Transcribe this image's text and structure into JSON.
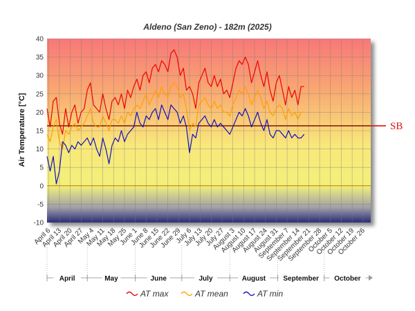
{
  "chart_data": {
    "type": "line",
    "title": "Aldeno (San Zeno) - 182m (2025)",
    "ylabel": "Air Temperature [°C]",
    "ylim": [
      -10,
      40
    ],
    "yticks": [
      "-10",
      "-5",
      "0",
      "5",
      "10",
      "15",
      "20",
      "25",
      "30",
      "35",
      "40"
    ],
    "x_range": [
      "2025-04-05",
      "2025-10-31"
    ],
    "xticks": [
      {
        "label": "April 6",
        "date": "2025-04-06"
      },
      {
        "label": "April 13",
        "date": "2025-04-13"
      },
      {
        "label": "April 20",
        "date": "2025-04-20"
      },
      {
        "label": "April 27",
        "date": "2025-04-27"
      },
      {
        "label": "May 4",
        "date": "2025-05-04"
      },
      {
        "label": "May 11",
        "date": "2025-05-11"
      },
      {
        "label": "May 18",
        "date": "2025-05-18"
      },
      {
        "label": "May 25",
        "date": "2025-05-25"
      },
      {
        "label": "June 1",
        "date": "2025-06-01"
      },
      {
        "label": "June 8",
        "date": "2025-06-08"
      },
      {
        "label": "June 15",
        "date": "2025-06-15"
      },
      {
        "label": "June 22",
        "date": "2025-06-22"
      },
      {
        "label": "June 29",
        "date": "2025-06-29"
      },
      {
        "label": "July 6",
        "date": "2025-07-06"
      },
      {
        "label": "July 13",
        "date": "2025-07-13"
      },
      {
        "label": "July 20",
        "date": "2025-07-20"
      },
      {
        "label": "July 27",
        "date": "2025-07-27"
      },
      {
        "label": "August 3",
        "date": "2025-08-03"
      },
      {
        "label": "August 10",
        "date": "2025-08-10"
      },
      {
        "label": "August 17",
        "date": "2025-08-17"
      },
      {
        "label": "August 24",
        "date": "2025-08-24"
      },
      {
        "label": "August 31",
        "date": "2025-08-31"
      },
      {
        "label": "September 7",
        "date": "2025-09-07"
      },
      {
        "label": "September 14",
        "date": "2025-09-14"
      },
      {
        "label": "September 21",
        "date": "2025-09-21"
      },
      {
        "label": "September 28",
        "date": "2025-09-28"
      },
      {
        "label": "October 5",
        "date": "2025-10-05"
      },
      {
        "label": "October 12",
        "date": "2025-10-12"
      },
      {
        "label": "October 19",
        "date": "2025-10-19"
      },
      {
        "label": "October 26",
        "date": "2025-10-26"
      }
    ],
    "months": [
      {
        "label": "April",
        "start": "2025-04-01",
        "end": "2025-05-01"
      },
      {
        "label": "May",
        "start": "2025-05-01",
        "end": "2025-06-01"
      },
      {
        "label": "June",
        "start": "2025-06-01",
        "end": "2025-07-01"
      },
      {
        "label": "July",
        "start": "2025-07-01",
        "end": "2025-08-01"
      },
      {
        "label": "August",
        "start": "2025-08-01",
        "end": "2025-09-01"
      },
      {
        "label": "September",
        "start": "2025-09-01",
        "end": "2025-10-01"
      },
      {
        "label": "October",
        "start": "2025-10-01",
        "end": "2025-11-01"
      }
    ],
    "reference_line": {
      "label": "SB",
      "value": 16.3,
      "color": "#e01010"
    },
    "zero_line_color": "#d07000",
    "grid": true,
    "legend_position": "bottom",
    "series": [
      {
        "name": "AT max",
        "color": "#ee0000",
        "x": [
          "2025-04-05",
          "2025-04-07",
          "2025-04-09",
          "2025-04-11",
          "2025-04-13",
          "2025-04-15",
          "2025-04-17",
          "2025-04-19",
          "2025-04-21",
          "2025-04-23",
          "2025-04-25",
          "2025-04-27",
          "2025-04-29",
          "2025-05-01",
          "2025-05-03",
          "2025-05-05",
          "2025-05-07",
          "2025-05-09",
          "2025-05-11",
          "2025-05-13",
          "2025-05-15",
          "2025-05-17",
          "2025-05-19",
          "2025-05-21",
          "2025-05-23",
          "2025-05-25",
          "2025-05-27",
          "2025-05-29",
          "2025-05-31",
          "2025-06-02",
          "2025-06-04",
          "2025-06-06",
          "2025-06-08",
          "2025-06-10",
          "2025-06-12",
          "2025-06-14",
          "2025-06-16",
          "2025-06-18",
          "2025-06-20",
          "2025-06-22",
          "2025-06-24",
          "2025-06-26",
          "2025-06-28",
          "2025-06-30",
          "2025-07-02",
          "2025-07-04",
          "2025-07-06",
          "2025-07-08",
          "2025-07-10",
          "2025-07-12",
          "2025-07-14",
          "2025-07-16",
          "2025-07-18",
          "2025-07-20",
          "2025-07-22",
          "2025-07-24",
          "2025-07-26",
          "2025-07-28",
          "2025-07-30",
          "2025-08-01",
          "2025-08-03",
          "2025-08-05",
          "2025-08-07",
          "2025-08-09",
          "2025-08-11",
          "2025-08-13",
          "2025-08-15",
          "2025-08-17",
          "2025-08-19",
          "2025-08-21",
          "2025-08-23",
          "2025-08-25",
          "2025-08-27",
          "2025-08-29",
          "2025-08-31",
          "2025-09-02",
          "2025-09-04",
          "2025-09-06",
          "2025-09-08",
          "2025-09-10",
          "2025-09-12",
          "2025-09-14",
          "2025-09-16",
          "2025-09-18"
        ],
        "values": [
          21,
          16,
          23,
          24,
          17,
          14,
          21,
          16,
          20,
          22,
          17,
          20,
          21,
          26,
          28,
          22,
          21,
          20,
          25,
          21,
          18,
          23,
          24,
          22,
          25,
          21,
          26,
          24,
          27,
          29,
          26,
          30,
          31,
          28,
          32,
          33,
          31,
          34,
          33,
          31,
          36,
          37,
          35,
          30,
          32,
          26,
          27,
          25,
          21,
          28,
          30,
          32,
          28,
          27,
          30,
          27,
          29,
          25,
          26,
          24,
          28,
          32,
          34,
          33,
          35,
          33,
          28,
          31,
          34,
          30,
          27,
          31,
          26,
          23,
          28,
          30,
          26,
          22,
          27,
          24,
          26,
          22,
          27,
          27
        ]
      },
      {
        "name": "AT mean",
        "color": "#ffa000",
        "x": [
          "2025-04-05",
          "2025-04-07",
          "2025-04-09",
          "2025-04-11",
          "2025-04-13",
          "2025-04-15",
          "2025-04-17",
          "2025-04-19",
          "2025-04-21",
          "2025-04-23",
          "2025-04-25",
          "2025-04-27",
          "2025-04-29",
          "2025-05-01",
          "2025-05-03",
          "2025-05-05",
          "2025-05-07",
          "2025-05-09",
          "2025-05-11",
          "2025-05-13",
          "2025-05-15",
          "2025-05-17",
          "2025-05-19",
          "2025-05-21",
          "2025-05-23",
          "2025-05-25",
          "2025-05-27",
          "2025-05-29",
          "2025-05-31",
          "2025-06-02",
          "2025-06-04",
          "2025-06-06",
          "2025-06-08",
          "2025-06-10",
          "2025-06-12",
          "2025-06-14",
          "2025-06-16",
          "2025-06-18",
          "2025-06-20",
          "2025-06-22",
          "2025-06-24",
          "2025-06-26",
          "2025-06-28",
          "2025-06-30",
          "2025-07-02",
          "2025-07-04",
          "2025-07-06",
          "2025-07-08",
          "2025-07-10",
          "2025-07-12",
          "2025-07-14",
          "2025-07-16",
          "2025-07-18",
          "2025-07-20",
          "2025-07-22",
          "2025-07-24",
          "2025-07-26",
          "2025-07-28",
          "2025-07-30",
          "2025-08-01",
          "2025-08-03",
          "2025-08-05",
          "2025-08-07",
          "2025-08-09",
          "2025-08-11",
          "2025-08-13",
          "2025-08-15",
          "2025-08-17",
          "2025-08-19",
          "2025-08-21",
          "2025-08-23",
          "2025-08-25",
          "2025-08-27",
          "2025-08-29",
          "2025-08-31",
          "2025-09-02",
          "2025-09-04",
          "2025-09-06",
          "2025-09-08",
          "2025-09-10",
          "2025-09-12",
          "2025-09-14",
          "2025-09-16",
          "2025-09-18"
        ],
        "values": [
          14,
          12,
          16,
          18,
          12,
          10,
          15,
          14,
          16,
          17,
          15,
          16,
          17,
          19,
          21,
          17,
          16,
          16,
          19,
          17,
          15,
          18,
          18,
          17,
          19,
          17,
          20,
          19,
          21,
          22,
          21,
          23,
          25,
          22,
          24,
          26,
          24,
          27,
          25,
          24,
          27,
          28,
          27,
          24,
          25,
          21,
          15,
          17,
          16,
          22,
          23,
          24,
          22,
          21,
          23,
          21,
          22,
          20,
          20,
          19,
          22,
          24,
          26,
          25,
          27,
          25,
          22,
          24,
          26,
          24,
          21,
          23,
          20,
          19,
          21,
          22,
          21,
          18,
          21,
          19,
          20,
          18,
          20,
          20
        ]
      },
      {
        "name": "AT min",
        "color": "#1010c0",
        "x": [
          "2025-04-05",
          "2025-04-07",
          "2025-04-09",
          "2025-04-11",
          "2025-04-13",
          "2025-04-15",
          "2025-04-17",
          "2025-04-19",
          "2025-04-21",
          "2025-04-23",
          "2025-04-25",
          "2025-04-27",
          "2025-04-29",
          "2025-05-01",
          "2025-05-03",
          "2025-05-05",
          "2025-05-07",
          "2025-05-09",
          "2025-05-11",
          "2025-05-13",
          "2025-05-15",
          "2025-05-17",
          "2025-05-19",
          "2025-05-21",
          "2025-05-23",
          "2025-05-25",
          "2025-05-27",
          "2025-05-29",
          "2025-05-31",
          "2025-06-02",
          "2025-06-04",
          "2025-06-06",
          "2025-06-08",
          "2025-06-10",
          "2025-06-12",
          "2025-06-14",
          "2025-06-16",
          "2025-06-18",
          "2025-06-20",
          "2025-06-22",
          "2025-06-24",
          "2025-06-26",
          "2025-06-28",
          "2025-06-30",
          "2025-07-02",
          "2025-07-04",
          "2025-07-06",
          "2025-07-08",
          "2025-07-10",
          "2025-07-12",
          "2025-07-14",
          "2025-07-16",
          "2025-07-18",
          "2025-07-20",
          "2025-07-22",
          "2025-07-24",
          "2025-07-26",
          "2025-07-28",
          "2025-07-30",
          "2025-08-01",
          "2025-08-03",
          "2025-08-05",
          "2025-08-07",
          "2025-08-09",
          "2025-08-11",
          "2025-08-13",
          "2025-08-15",
          "2025-08-17",
          "2025-08-19",
          "2025-08-21",
          "2025-08-23",
          "2025-08-25",
          "2025-08-27",
          "2025-08-29",
          "2025-08-31",
          "2025-09-02",
          "2025-09-04",
          "2025-09-06",
          "2025-09-08",
          "2025-09-10",
          "2025-09-12",
          "2025-09-14",
          "2025-09-16",
          "2025-09-18"
        ],
        "values": [
          8,
          4,
          8,
          0.5,
          4,
          12,
          11,
          9,
          11,
          10,
          12,
          11,
          12,
          13,
          11,
          13,
          10,
          8,
          13,
          10,
          6,
          11,
          13,
          12,
          15,
          12,
          14,
          15,
          16,
          20,
          17,
          16,
          19,
          18,
          20,
          21,
          18,
          22,
          20,
          18,
          22,
          21,
          20,
          17,
          19,
          16,
          9,
          14,
          13,
          17,
          18,
          19,
          17,
          16,
          18,
          16,
          17,
          16,
          15,
          14,
          16,
          18,
          20,
          19,
          21,
          19,
          16,
          18,
          20,
          17,
          15,
          18,
          14,
          13,
          15,
          15,
          14,
          13,
          15,
          13,
          14,
          13,
          13,
          14
        ]
      }
    ]
  }
}
